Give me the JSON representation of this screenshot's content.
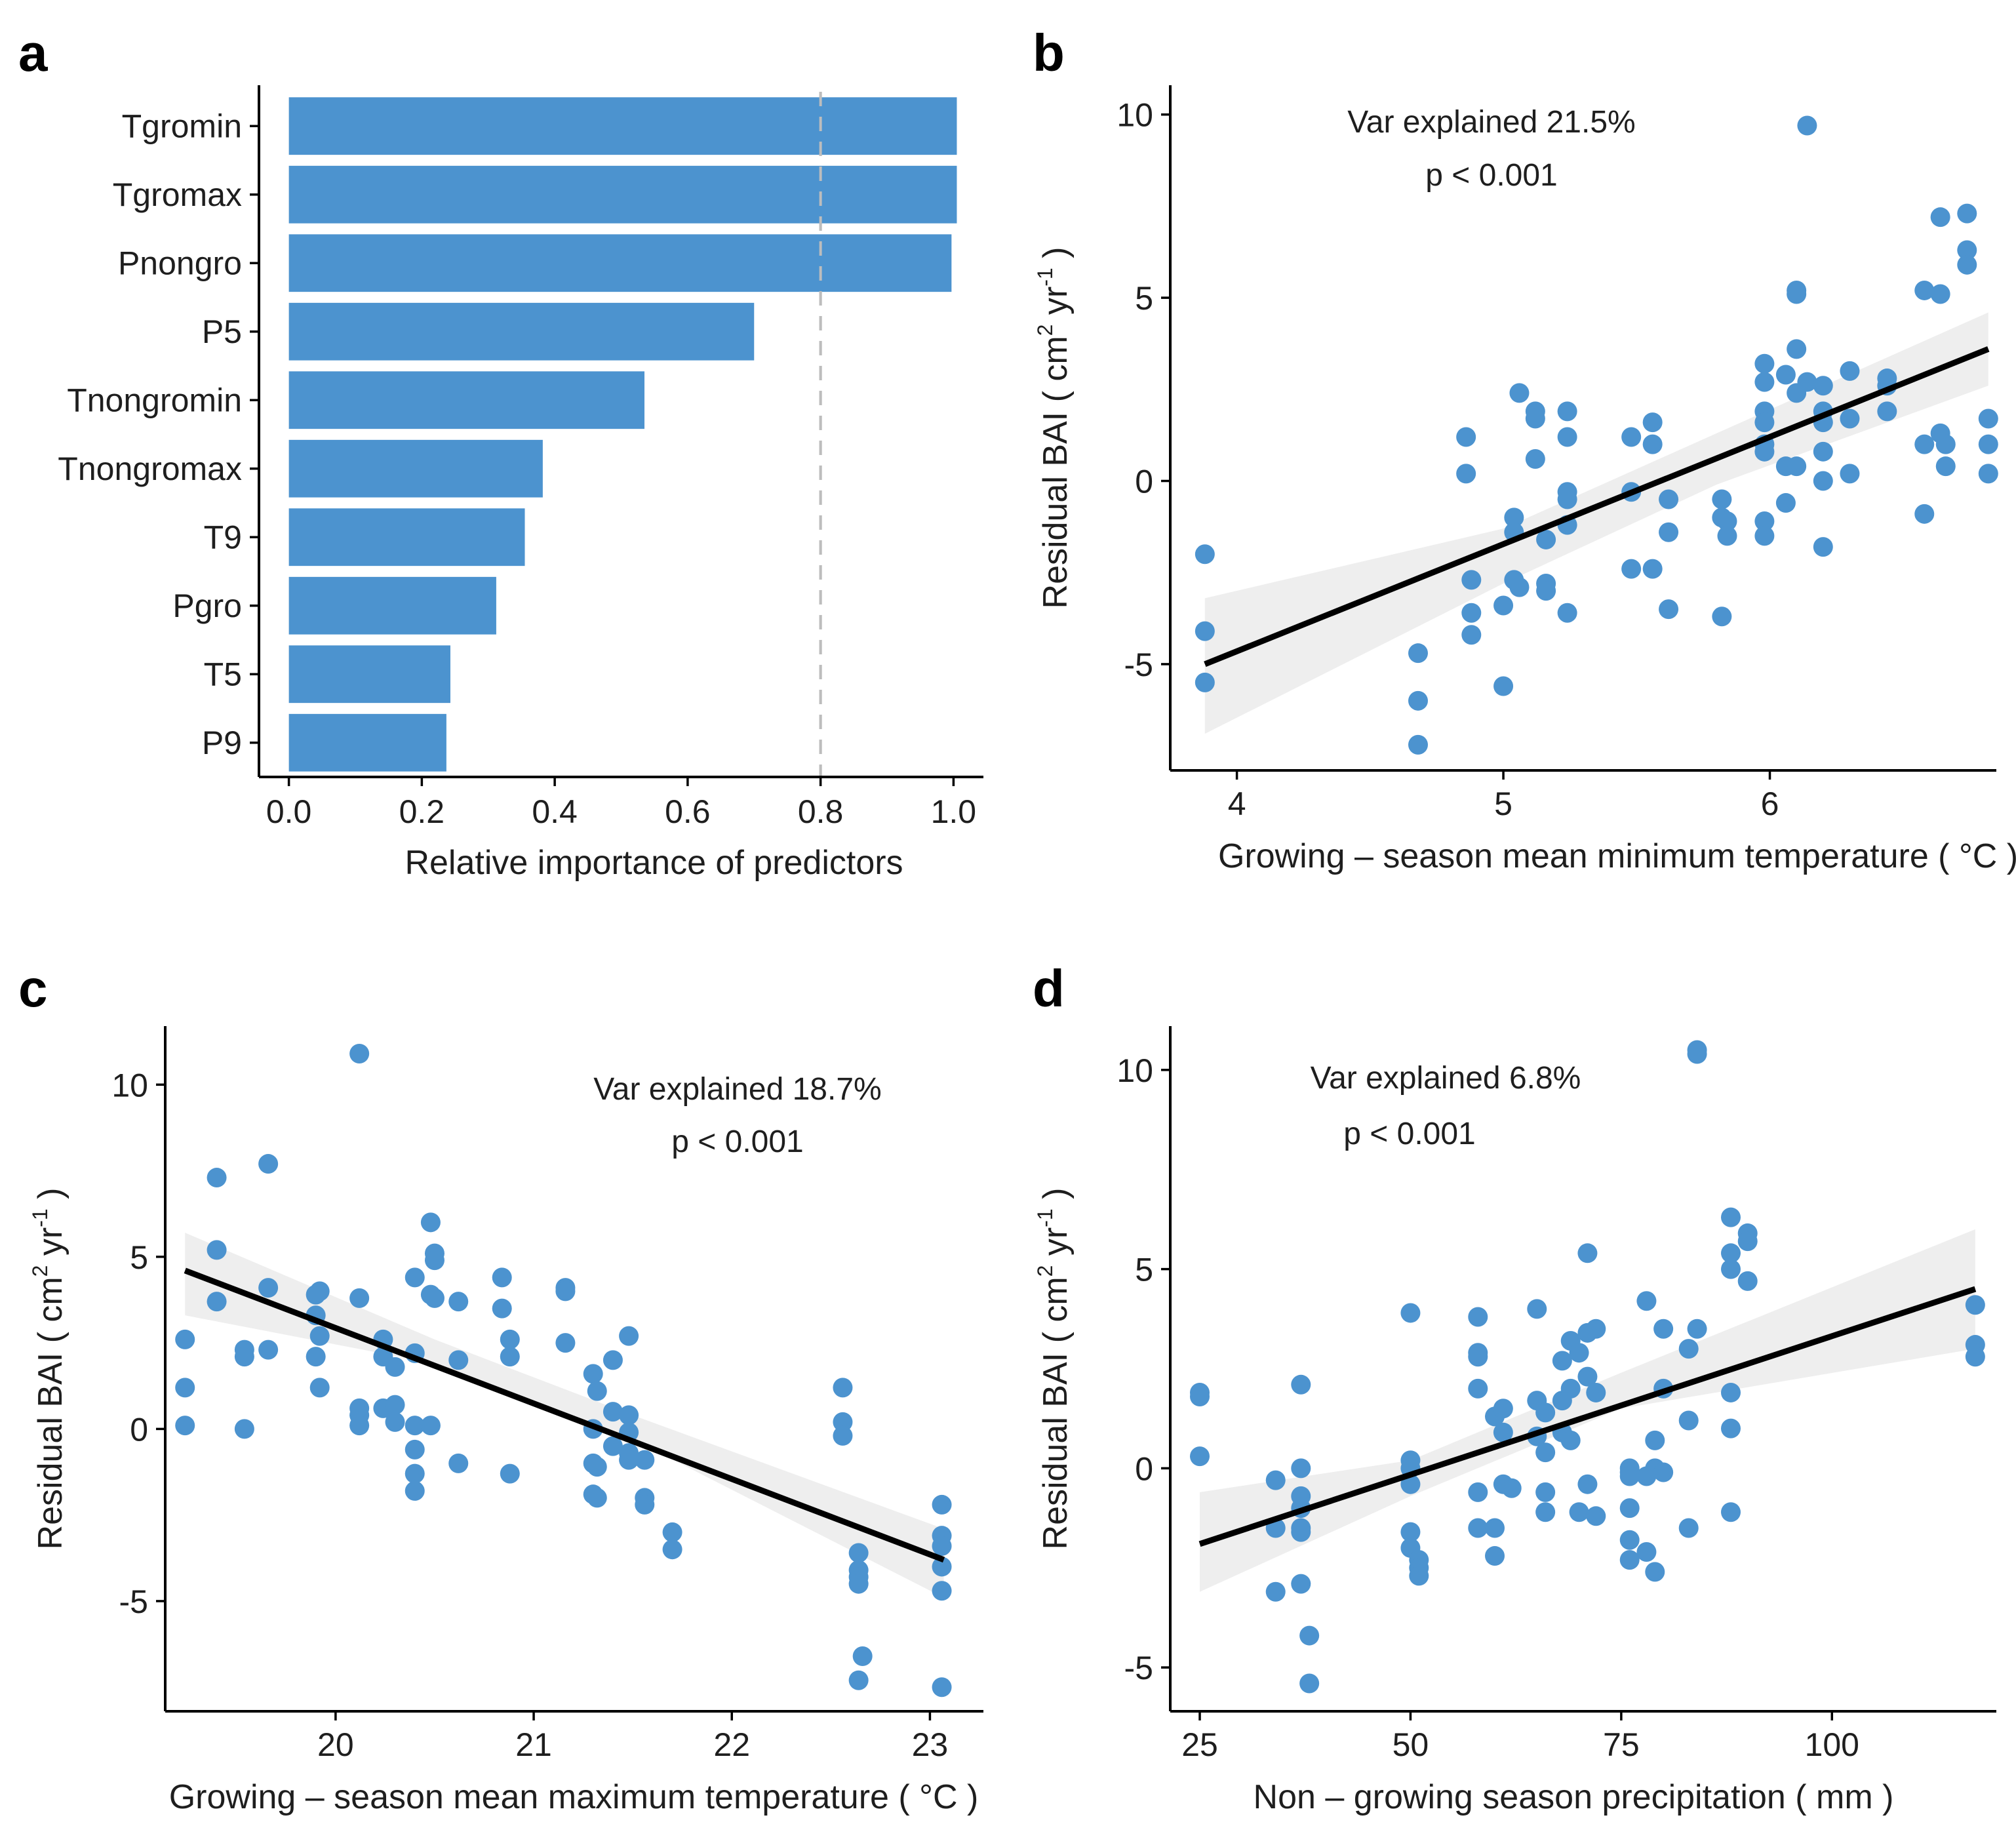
{
  "colors": {
    "bar": "#4c93cf",
    "point": "#4c93cf",
    "fit": "#000000",
    "band": "#d9d9d9"
  },
  "chart_data": [
    {
      "panel": "a",
      "type": "bar",
      "orientation": "horizontal",
      "categories": [
        "Tgromin",
        "Tgromax",
        "Pnongro",
        "P5",
        "Tnongromin",
        "Tnongromax",
        "T9",
        "Pgro",
        "T5",
        "P9"
      ],
      "values": [
        1.005,
        1.005,
        0.997,
        0.7,
        0.535,
        0.382,
        0.355,
        0.312,
        0.243,
        0.237
      ],
      "xlabel": "Relative importance of predictors",
      "xlim": [
        -0.045,
        1.045
      ],
      "xticks": [
        0.0,
        0.2,
        0.4,
        0.6,
        0.8,
        1.0
      ],
      "xtick_labels": [
        "0.0",
        "0.2",
        "0.4",
        "0.6",
        "0.8",
        "1.0"
      ],
      "reference_line": 0.8
    },
    {
      "panel": "b",
      "type": "scatter",
      "xlabel": "Growing – season mean minimum temperature ( °C )",
      "ylabel": "Residual BAI ( cm",
      "ylabel_sup1": "2",
      "ylabel_mid": " yr",
      "ylabel_sup2": "-1",
      "ylabel_end": " )",
      "annotation": [
        "Var explained 21.5%",
        "p < 0.001"
      ],
      "xlim": [
        3.75,
        6.85
      ],
      "ylim": [
        -7.9,
        10.8
      ],
      "xticks": [
        4,
        5,
        6
      ],
      "xtick_labels": [
        "4",
        "5",
        "6"
      ],
      "yticks": [
        -5,
        0,
        5,
        10
      ],
      "ytick_labels": [
        "-5",
        "0",
        "5",
        "10"
      ],
      "fit": {
        "x": [
          3.88,
          6.82
        ],
        "y": [
          -5.0,
          3.6
        ]
      },
      "band": {
        "x": [
          3.88,
          5.0,
          5.8,
          6.82
        ],
        "upper": [
          -3.2,
          -1.3,
          1.3,
          4.6
        ],
        "lower": [
          -6.9,
          -2.8,
          -0.1,
          2.6
        ]
      },
      "points": [
        [
          3.88,
          -2.0
        ],
        [
          3.88,
          -4.1
        ],
        [
          3.88,
          -5.5
        ],
        [
          4.68,
          -4.7
        ],
        [
          4.68,
          -6.0
        ],
        [
          4.68,
          -7.2
        ],
        [
          4.86,
          1.2
        ],
        [
          4.86,
          0.2
        ],
        [
          4.88,
          -2.7
        ],
        [
          4.88,
          -3.6
        ],
        [
          4.88,
          -4.2
        ],
        [
          5.0,
          -3.4
        ],
        [
          5.0,
          -5.6
        ],
        [
          5.04,
          -1.0
        ],
        [
          5.04,
          -1.4
        ],
        [
          5.04,
          -2.7
        ],
        [
          5.06,
          -2.9
        ],
        [
          5.06,
          2.4
        ],
        [
          5.12,
          1.9
        ],
        [
          5.12,
          1.7
        ],
        [
          5.12,
          0.6
        ],
        [
          5.16,
          -1.6
        ],
        [
          5.16,
          -2.8
        ],
        [
          5.16,
          -3.0
        ],
        [
          5.24,
          1.9
        ],
        [
          5.24,
          1.2
        ],
        [
          5.24,
          -0.3
        ],
        [
          5.24,
          -0.5
        ],
        [
          5.24,
          -1.2
        ],
        [
          5.24,
          -3.6
        ],
        [
          5.48,
          1.2
        ],
        [
          5.48,
          -0.3
        ],
        [
          5.48,
          -2.4
        ],
        [
          5.56,
          1.6
        ],
        [
          5.56,
          1.0
        ],
        [
          5.56,
          -2.4
        ],
        [
          5.62,
          -0.5
        ],
        [
          5.62,
          -1.4
        ],
        [
          5.62,
          -3.5
        ],
        [
          5.82,
          -0.5
        ],
        [
          5.82,
          -1.0
        ],
        [
          5.82,
          -3.7
        ],
        [
          5.84,
          -1.1
        ],
        [
          5.84,
          -1.5
        ],
        [
          5.98,
          3.2
        ],
        [
          5.98,
          2.7
        ],
        [
          5.98,
          1.9
        ],
        [
          5.98,
          1.6
        ],
        [
          5.98,
          1.0
        ],
        [
          5.98,
          0.8
        ],
        [
          5.98,
          -1.1
        ],
        [
          5.98,
          -1.5
        ],
        [
          6.06,
          2.9
        ],
        [
          6.06,
          0.4
        ],
        [
          6.06,
          -0.6
        ],
        [
          6.1,
          5.2
        ],
        [
          6.1,
          5.1
        ],
        [
          6.1,
          3.6
        ],
        [
          6.1,
          2.4
        ],
        [
          6.1,
          0.4
        ],
        [
          6.14,
          9.7
        ],
        [
          6.14,
          2.7
        ],
        [
          6.2,
          2.6
        ],
        [
          6.2,
          1.9
        ],
        [
          6.2,
          1.6
        ],
        [
          6.2,
          0.8
        ],
        [
          6.2,
          0.0
        ],
        [
          6.2,
          -1.8
        ],
        [
          6.3,
          3.0
        ],
        [
          6.3,
          1.7
        ],
        [
          6.3,
          0.2
        ],
        [
          6.44,
          2.8
        ],
        [
          6.44,
          2.6
        ],
        [
          6.44,
          1.9
        ],
        [
          6.58,
          5.2
        ],
        [
          6.58,
          1.0
        ],
        [
          6.58,
          -0.9
        ],
        [
          6.64,
          7.2
        ],
        [
          6.64,
          5.1
        ],
        [
          6.64,
          1.3
        ],
        [
          6.66,
          1.0
        ],
        [
          6.66,
          0.4
        ],
        [
          6.74,
          7.3
        ],
        [
          6.74,
          6.3
        ],
        [
          6.74,
          5.9
        ],
        [
          6.82,
          1.7
        ],
        [
          6.82,
          1.0
        ],
        [
          6.82,
          0.2
        ]
      ]
    },
    {
      "panel": "c",
      "type": "scatter",
      "xlabel": "Growing – season mean maximum temperature ( °C )",
      "ylabel": "Residual BAI ( cm",
      "ylabel_sup1": "2",
      "ylabel_mid": " yr",
      "ylabel_sup2": "-1",
      "ylabel_end": " )",
      "annotation": [
        "Var explained 18.7%",
        "p < 0.001"
      ],
      "xlim": [
        19.14,
        23.27
      ],
      "ylim": [
        -8.2,
        11.7
      ],
      "xticks": [
        20,
        21,
        22,
        23
      ],
      "xtick_labels": [
        "20",
        "21",
        "22",
        "23"
      ],
      "yticks": [
        -5,
        0,
        5,
        10
      ],
      "ytick_labels": [
        "-5",
        "0",
        "5",
        "10"
      ],
      "fit": {
        "x": [
          19.24,
          23.07
        ],
        "y": [
          4.6,
          -3.8
        ]
      },
      "band": {
        "x": [
          19.24,
          20.5,
          21.5,
          23.07
        ],
        "upper": [
          5.7,
          2.6,
          0.4,
          -2.9
        ],
        "lower": [
          3.3,
          1.9,
          -0.3,
          -4.9
        ]
      },
      "points": [
        [
          19.24,
          2.6
        ],
        [
          19.24,
          1.2
        ],
        [
          19.24,
          0.1
        ],
        [
          19.4,
          7.3
        ],
        [
          19.4,
          5.2
        ],
        [
          19.4,
          3.7
        ],
        [
          19.54,
          2.3
        ],
        [
          19.54,
          2.1
        ],
        [
          19.54,
          0.0
        ],
        [
          19.66,
          7.7
        ],
        [
          19.66,
          4.1
        ],
        [
          19.66,
          2.3
        ],
        [
          19.9,
          3.9
        ],
        [
          19.9,
          3.3
        ],
        [
          19.9,
          2.1
        ],
        [
          19.92,
          4.0
        ],
        [
          19.92,
          2.7
        ],
        [
          19.92,
          1.2
        ],
        [
          20.12,
          10.9
        ],
        [
          20.12,
          3.8
        ],
        [
          20.12,
          0.6
        ],
        [
          20.12,
          0.4
        ],
        [
          20.12,
          0.1
        ],
        [
          20.24,
          2.6
        ],
        [
          20.24,
          2.1
        ],
        [
          20.24,
          0.6
        ],
        [
          20.3,
          1.8
        ],
        [
          20.3,
          0.7
        ],
        [
          20.3,
          0.2
        ],
        [
          20.4,
          4.4
        ],
        [
          20.4,
          2.2
        ],
        [
          20.4,
          0.1
        ],
        [
          20.4,
          -0.6
        ],
        [
          20.4,
          -1.3
        ],
        [
          20.4,
          -1.8
        ],
        [
          20.48,
          6.0
        ],
        [
          20.48,
          3.9
        ],
        [
          20.48,
          0.1
        ],
        [
          20.5,
          5.1
        ],
        [
          20.5,
          4.9
        ],
        [
          20.5,
          3.8
        ],
        [
          20.62,
          3.7
        ],
        [
          20.62,
          2.0
        ],
        [
          20.62,
          -1.0
        ],
        [
          20.84,
          4.4
        ],
        [
          20.84,
          3.5
        ],
        [
          20.88,
          2.6
        ],
        [
          20.88,
          2.1
        ],
        [
          20.88,
          -1.3
        ],
        [
          21.16,
          4.1
        ],
        [
          21.16,
          4.0
        ],
        [
          21.16,
          2.5
        ],
        [
          21.3,
          1.6
        ],
        [
          21.3,
          0.0
        ],
        [
          21.3,
          -1.0
        ],
        [
          21.3,
          -1.9
        ],
        [
          21.32,
          1.1
        ],
        [
          21.32,
          -1.1
        ],
        [
          21.32,
          -2.0
        ],
        [
          21.4,
          2.0
        ],
        [
          21.4,
          0.5
        ],
        [
          21.4,
          -0.5
        ],
        [
          21.48,
          2.7
        ],
        [
          21.48,
          0.4
        ],
        [
          21.48,
          -0.1
        ],
        [
          21.48,
          -0.7
        ],
        [
          21.48,
          -0.9
        ],
        [
          21.56,
          -0.9
        ],
        [
          21.56,
          -2.0
        ],
        [
          21.56,
          -2.2
        ],
        [
          21.7,
          -3.0
        ],
        [
          21.7,
          -3.5
        ],
        [
          22.56,
          1.2
        ],
        [
          22.56,
          0.2
        ],
        [
          22.56,
          -0.2
        ],
        [
          22.64,
          -3.6
        ],
        [
          22.64,
          -4.1
        ],
        [
          22.64,
          -4.3
        ],
        [
          22.64,
          -4.5
        ],
        [
          22.64,
          -7.3
        ],
        [
          22.66,
          -6.6
        ],
        [
          23.06,
          -2.2
        ],
        [
          23.06,
          -3.1
        ],
        [
          23.06,
          -3.4
        ],
        [
          23.06,
          -4.0
        ],
        [
          23.06,
          -4.7
        ],
        [
          23.06,
          -7.5
        ]
      ]
    },
    {
      "panel": "d",
      "type": "scatter",
      "xlabel": "Non – growing season precipitation ( mm )",
      "ylabel": "Residual BAI ( cm",
      "ylabel_sup1": "2",
      "ylabel_mid": " yr",
      "ylabel_sup2": "-1",
      "ylabel_end": " )",
      "annotation": [
        "Var explained 6.8%",
        "p < 0.001"
      ],
      "xlim": [
        21.5,
        119.5
      ],
      "ylim": [
        -6.1,
        11.1
      ],
      "xticks": [
        25,
        50,
        75,
        100
      ],
      "xtick_labels": [
        "25",
        "50",
        "75",
        "100"
      ],
      "yticks": [
        -5,
        0,
        5,
        10
      ],
      "ytick_labels": [
        "-5",
        "0",
        "5",
        "10"
      ],
      "fit": {
        "x": [
          25,
          117
        ],
        "y": [
          -1.9,
          4.5
        ]
      },
      "band": {
        "x": [
          25,
          50,
          75,
          117
        ],
        "upper": [
          -0.6,
          0.2,
          2.4,
          6.0
        ],
        "lower": [
          -3.1,
          -0.7,
          1.5,
          3.0
        ]
      },
      "points": [
        [
          25,
          1.9
        ],
        [
          25,
          1.8
        ],
        [
          25,
          0.3
        ],
        [
          34,
          -0.3
        ],
        [
          34,
          -1.5
        ],
        [
          34,
          -3.1
        ],
        [
          37,
          2.1
        ],
        [
          37,
          0.0
        ],
        [
          37,
          -0.7
        ],
        [
          37,
          -1.0
        ],
        [
          37,
          -1.5
        ],
        [
          37,
          -1.6
        ],
        [
          37,
          -2.9
        ],
        [
          38,
          -4.2
        ],
        [
          38,
          -5.4
        ],
        [
          50,
          3.9
        ],
        [
          50,
          0.2
        ],
        [
          50,
          0.0
        ],
        [
          50,
          -0.4
        ],
        [
          50,
          -1.6
        ],
        [
          50,
          -2.0
        ],
        [
          51,
          -2.3
        ],
        [
          51,
          -2.5
        ],
        [
          51,
          -2.7
        ],
        [
          58,
          3.8
        ],
        [
          58,
          2.9
        ],
        [
          58,
          2.8
        ],
        [
          58,
          2.0
        ],
        [
          58,
          -0.6
        ],
        [
          58,
          -1.5
        ],
        [
          60,
          1.3
        ],
        [
          60,
          -1.5
        ],
        [
          60,
          -2.2
        ],
        [
          61,
          1.5
        ],
        [
          61,
          0.9
        ],
        [
          61,
          -0.4
        ],
        [
          62,
          -0.5
        ],
        [
          65,
          4.0
        ],
        [
          65,
          1.7
        ],
        [
          65,
          0.8
        ],
        [
          66,
          1.4
        ],
        [
          66,
          0.4
        ],
        [
          66,
          -0.6
        ],
        [
          66,
          -1.1
        ],
        [
          68,
          2.7
        ],
        [
          68,
          1.7
        ],
        [
          68,
          0.9
        ],
        [
          69,
          3.2
        ],
        [
          69,
          2.0
        ],
        [
          69,
          0.7
        ],
        [
          70,
          2.9
        ],
        [
          70,
          -1.1
        ],
        [
          71,
          5.4
        ],
        [
          71,
          3.4
        ],
        [
          71,
          2.3
        ],
        [
          71,
          -0.4
        ],
        [
          72,
          3.5
        ],
        [
          72,
          1.9
        ],
        [
          72,
          -1.2
        ],
        [
          76,
          0.0
        ],
        [
          76,
          -0.1
        ],
        [
          76,
          -0.2
        ],
        [
          76,
          -1.0
        ],
        [
          76,
          -1.8
        ],
        [
          76,
          -2.3
        ],
        [
          78,
          4.2
        ],
        [
          78,
          -0.2
        ],
        [
          78,
          -2.1
        ],
        [
          79,
          0.7
        ],
        [
          79,
          0.0
        ],
        [
          79,
          -2.6
        ],
        [
          80,
          3.5
        ],
        [
          80,
          2.0
        ],
        [
          80,
          -0.1
        ],
        [
          83,
          3.0
        ],
        [
          83,
          1.2
        ],
        [
          83,
          -1.5
        ],
        [
          84,
          10.5
        ],
        [
          84,
          10.4
        ],
        [
          84,
          3.5
        ],
        [
          88,
          6.3
        ],
        [
          88,
          5.4
        ],
        [
          88,
          5.0
        ],
        [
          88,
          1.9
        ],
        [
          88,
          1.0
        ],
        [
          88,
          -1.1
        ],
        [
          90,
          5.9
        ],
        [
          90,
          5.7
        ],
        [
          90,
          4.7
        ],
        [
          117,
          4.1
        ],
        [
          117,
          3.1
        ],
        [
          117,
          2.8
        ]
      ]
    }
  ]
}
